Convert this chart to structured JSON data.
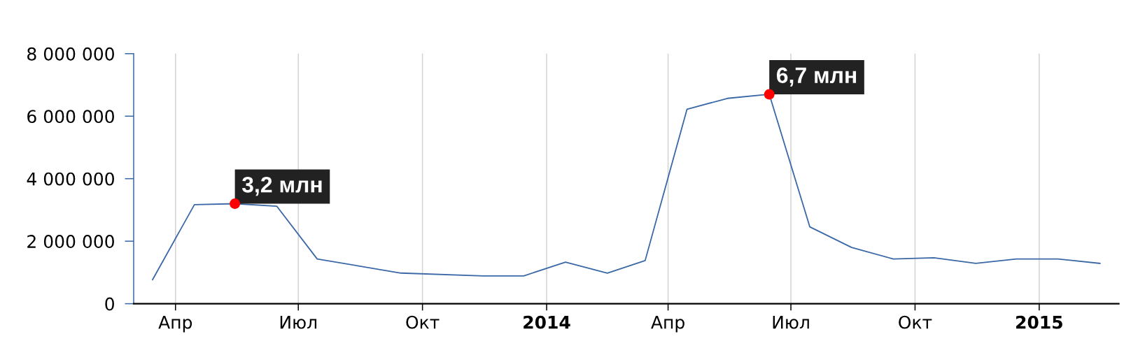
{
  "chart_data": {
    "type": "line",
    "x": [
      "2013-03-15",
      "2013-04-15",
      "2013-05-15",
      "2013-06-15",
      "2013-07-15",
      "2013-09-15",
      "2013-11-15",
      "2013-12-15",
      "2014-01-15",
      "2014-02-15",
      "2014-03-15",
      "2014-04-15",
      "2014-05-15",
      "2014-06-15",
      "2014-07-15",
      "2014-08-15",
      "2014-09-15",
      "2014-10-15",
      "2014-11-15",
      "2014-12-15",
      "2015-01-15",
      "2015-02-15"
    ],
    "series": [
      {
        "color": "#3a68a6",
        "values": [
          770000,
          3170000,
          3200000,
          3120000,
          1430000,
          980000,
          890000,
          890000,
          1330000,
          980000,
          1380000,
          6220000,
          6570000,
          6700000,
          2460000,
          1800000,
          1430000,
          1470000,
          1290000,
          1430000,
          1430000,
          1290000
        ]
      },
      {
        "type": "scatter",
        "color": "#ff0000",
        "marker": "circle",
        "x": [
          "2013-05-15",
          "2014-06-15"
        ],
        "values": [
          3200000,
          6700000
        ]
      }
    ],
    "annotations": [
      {
        "text": "3,2 млн",
        "x": "2013-05-15",
        "y": 3200000
      },
      {
        "text": "6,7 млн",
        "x": "2014-06-15",
        "y": 6700000
      }
    ],
    "xlim": [
      "2013-03-01",
      "2015-03-01"
    ],
    "xticks": [
      {
        "value": "2013-04-01",
        "label": "Апр"
      },
      {
        "value": "2013-07-01",
        "label": "Июл"
      },
      {
        "value": "2013-10-01",
        "label": "Окт"
      },
      {
        "value": "2014-01-01",
        "label": "2014"
      },
      {
        "value": "2014-04-01",
        "label": "Апр"
      },
      {
        "value": "2014-07-01",
        "label": "Июл"
      },
      {
        "value": "2014-10-01",
        "label": "Окт"
      },
      {
        "value": "2015-01-01",
        "label": "2015"
      }
    ],
    "ylim": [
      0,
      8000000
    ],
    "yticks": [
      0,
      {
        "value": 2000000,
        "label": "2 000 000"
      },
      {
        "value": 4000000,
        "label": "4 000 000"
      },
      {
        "value": 6000000,
        "label": "6 000 000"
      },
      {
        "value": 8000000,
        "label": "8 000 000"
      }
    ],
    "grid": "x"
  }
}
